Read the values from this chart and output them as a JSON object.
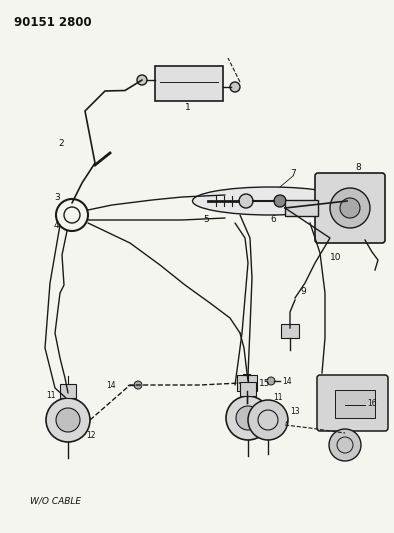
{
  "title": "90151 2800",
  "bg_color": "#f5f5f0",
  "line_color": "#1a1a1a",
  "label_color": "#111111",
  "title_fontsize": 8.5,
  "label_fontsize": 6.5,
  "footer_text": "W/O CABLE",
  "figsize": [
    3.94,
    5.33
  ],
  "dpi": 100,
  "xlim": [
    0,
    394
  ],
  "ylim": [
    0,
    533
  ]
}
